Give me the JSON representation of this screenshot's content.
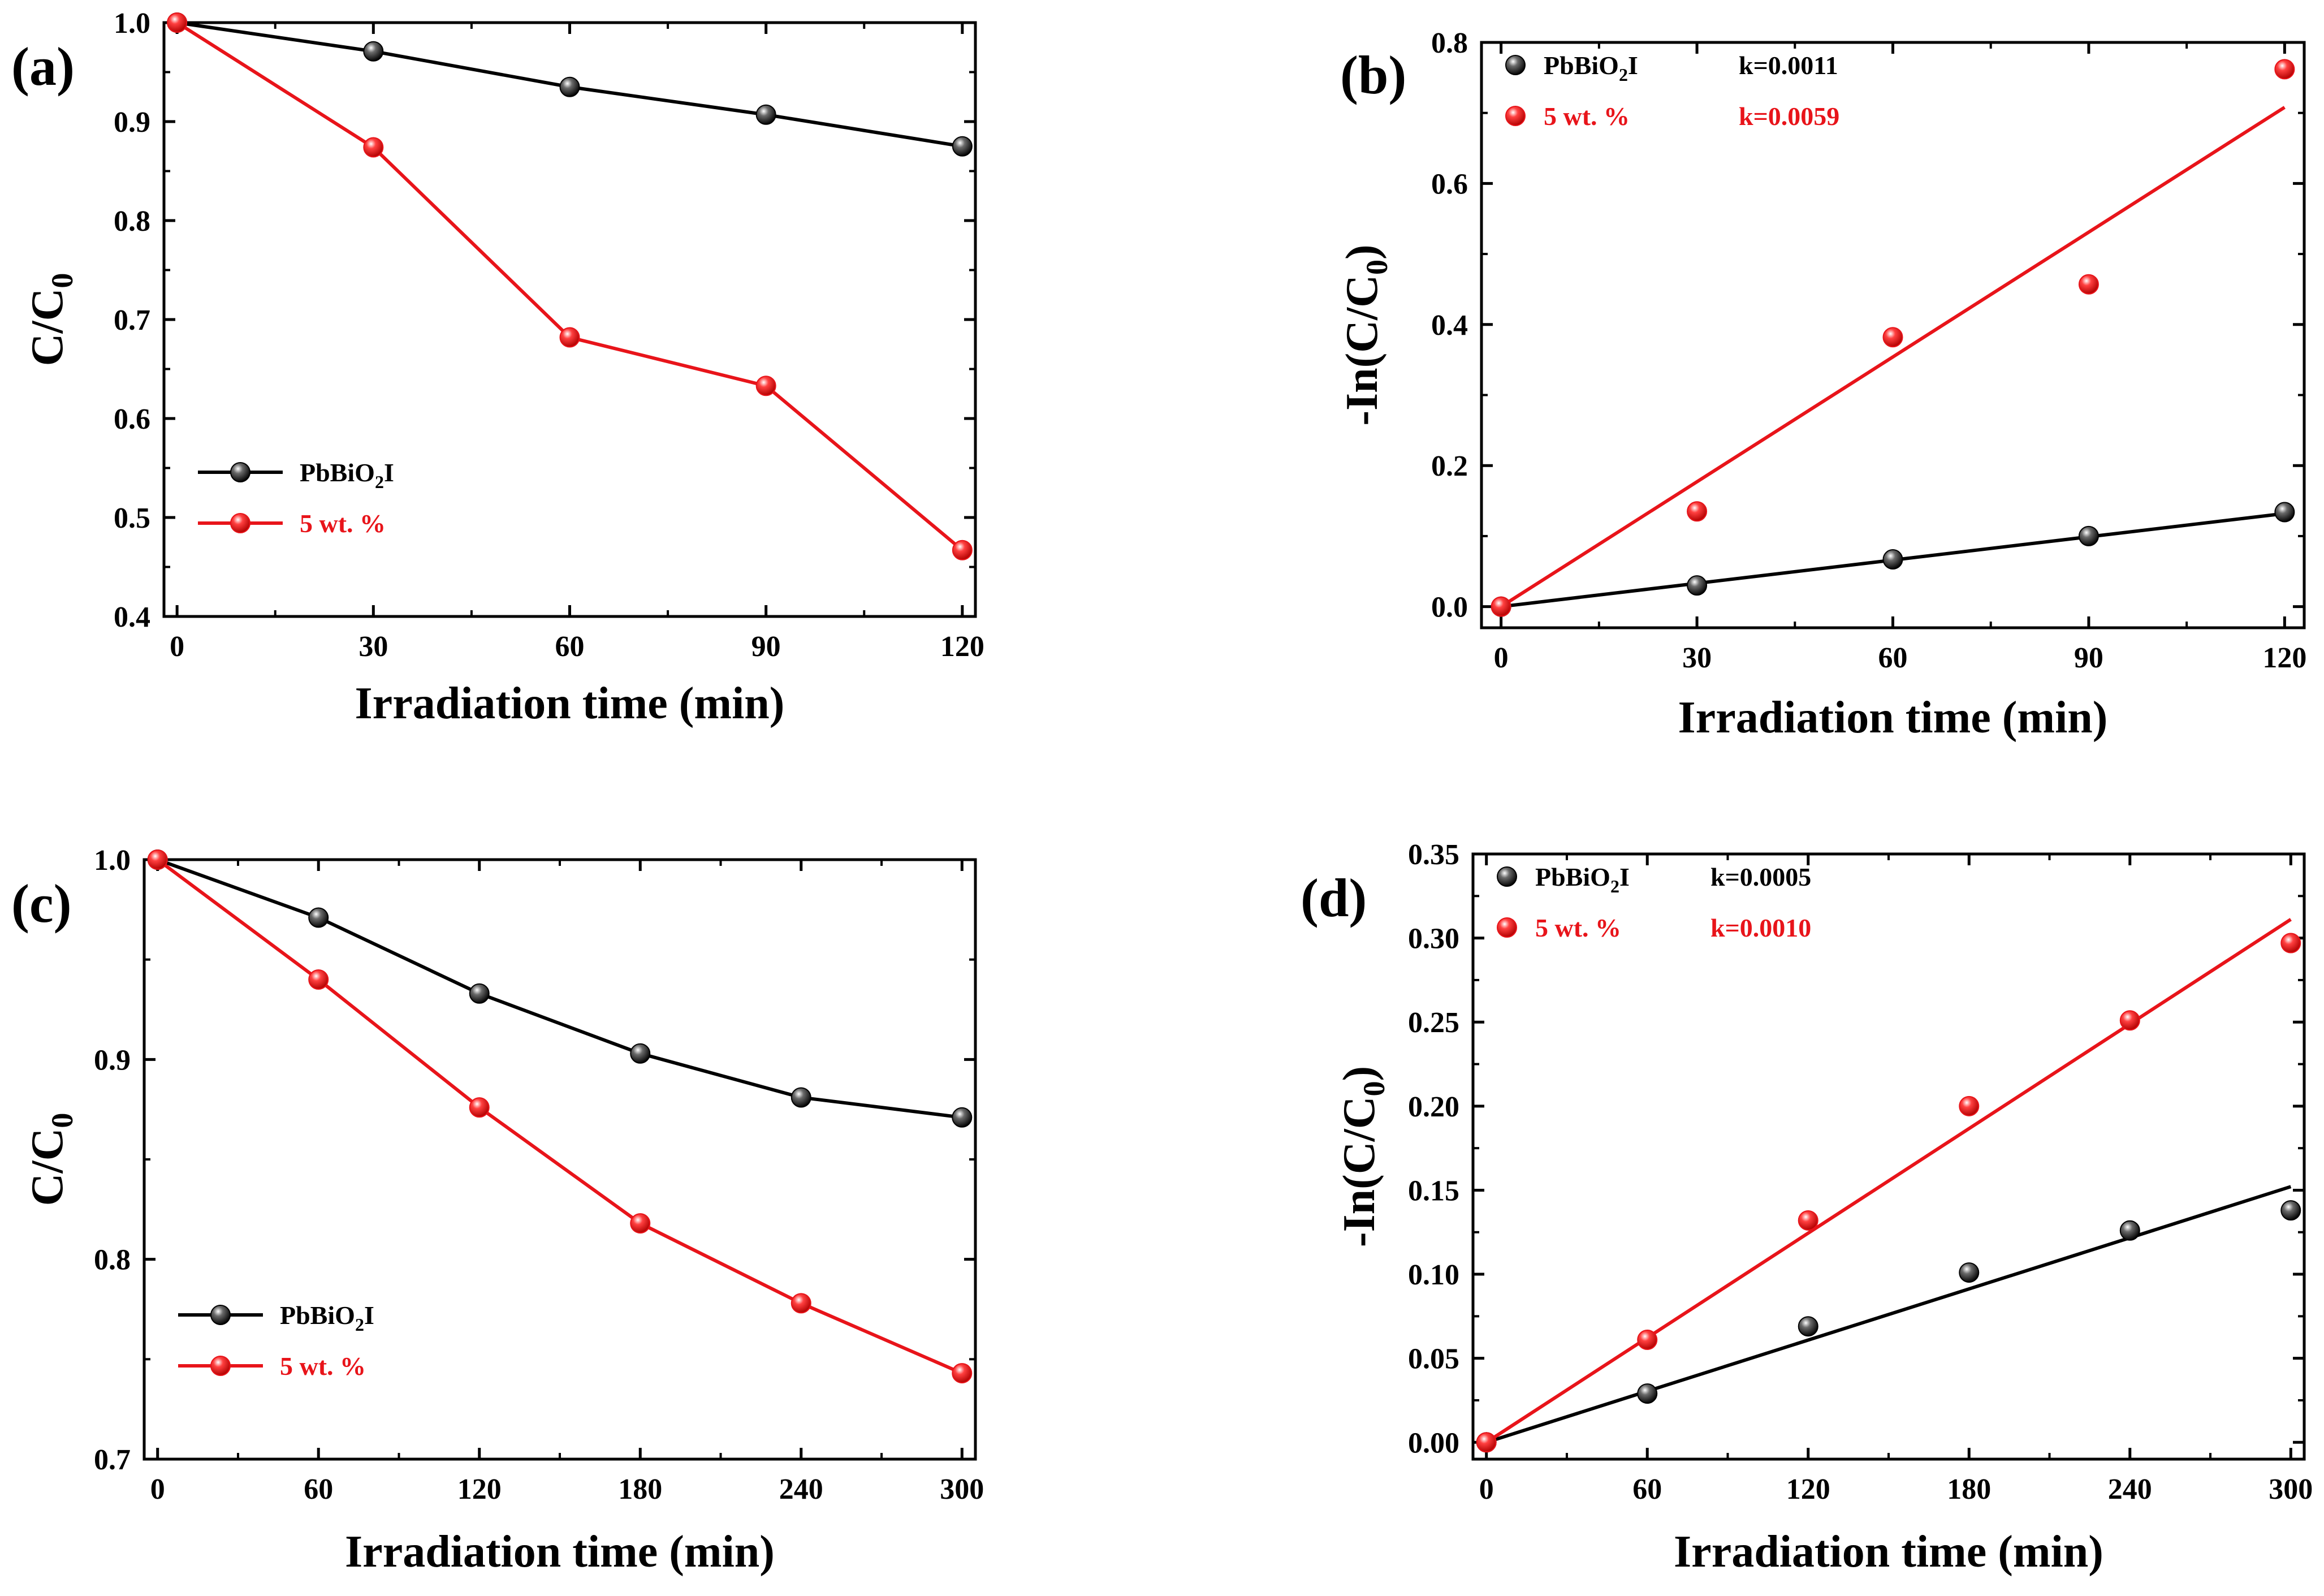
{
  "chart_data": [
    {
      "id": "a",
      "panel_label": "(a)",
      "type": "line",
      "xlabel": "Irradiation time (min)",
      "ylabel": "C/C",
      "ylabel_sub": "0",
      "xlim": [
        -2,
        122
      ],
      "ylim": [
        0.4,
        1.0
      ],
      "xticks": [
        0,
        30,
        60,
        90,
        120
      ],
      "yticks": [
        0.4,
        0.5,
        0.6,
        0.7,
        0.8,
        0.9,
        1.0
      ],
      "xtick_labels": [
        "0",
        "30",
        "60",
        "90",
        "120"
      ],
      "ytick_labels": [
        "0.4",
        "0.5",
        "0.6",
        "0.7",
        "0.8",
        "0.9",
        "1.0"
      ],
      "legend_position": "bottom-left",
      "series": [
        {
          "name": "PbBiO",
          "name_sub": "2",
          "name_tail": "I",
          "color": "#000000",
          "x": [
            0,
            30,
            60,
            90,
            120
          ],
          "values": [
            1.0,
            0.971,
            0.935,
            0.907,
            0.875
          ]
        },
        {
          "name": "5 wt. %",
          "name_sub": "",
          "name_tail": "",
          "color": "#e8141a",
          "x": [
            0,
            30,
            60,
            90,
            120
          ],
          "values": [
            1.0,
            0.874,
            0.682,
            0.633,
            0.467
          ]
        }
      ]
    },
    {
      "id": "b",
      "panel_label": "(b)",
      "type": "scatter",
      "fit": "linear",
      "xlabel": "Irradiation time (min)",
      "ylabel": "-In(C/C",
      "ylabel_sub": "0",
      "ylabel_tail": ")",
      "xlim": [
        -3,
        123
      ],
      "ylim": [
        -0.03,
        0.8
      ],
      "xticks": [
        0,
        30,
        60,
        90,
        120
      ],
      "yticks": [
        0.0,
        0.2,
        0.4,
        0.6,
        0.8
      ],
      "xtick_labels": [
        "0",
        "30",
        "60",
        "90",
        "120"
      ],
      "ytick_labels": [
        "0.0",
        "0.2",
        "0.4",
        "0.6",
        "0.8"
      ],
      "legend_position": "top-left",
      "series": [
        {
          "name": "PbBiO",
          "name_sub": "2",
          "name_tail": "I",
          "k_label": "k=0.0011",
          "color": "#000000",
          "x": [
            0,
            30,
            60,
            90,
            120
          ],
          "values": [
            0.0,
            0.03,
            0.067,
            0.1,
            0.134
          ],
          "slope": 0.0011
        },
        {
          "name": "5 wt. %",
          "name_sub": "",
          "name_tail": "",
          "k_label": "k=0.0059",
          "color": "#e8141a",
          "x": [
            0,
            30,
            60,
            90,
            120
          ],
          "values": [
            0.0,
            0.135,
            0.382,
            0.457,
            0.762
          ],
          "slope": 0.0059
        }
      ]
    },
    {
      "id": "c",
      "panel_label": "(c)",
      "type": "line",
      "xlabel": "Irradiation time (min)",
      "ylabel": "C/C",
      "ylabel_sub": "0",
      "xlim": [
        -5,
        305
      ],
      "ylim": [
        0.7,
        1.0
      ],
      "xticks": [
        0,
        60,
        120,
        180,
        240,
        300
      ],
      "yticks": [
        0.7,
        0.8,
        0.9,
        1.0
      ],
      "xtick_labels": [
        "0",
        "60",
        "120",
        "180",
        "240",
        "300"
      ],
      "ytick_labels": [
        "0.7",
        "0.8",
        "0.9",
        "1.0"
      ],
      "legend_position": "bottom-left",
      "series": [
        {
          "name": "PbBiO",
          "name_sub": "2",
          "name_tail": "I",
          "color": "#000000",
          "x": [
            0,
            60,
            120,
            180,
            240,
            300
          ],
          "values": [
            1.0,
            0.971,
            0.933,
            0.903,
            0.881,
            0.871
          ]
        },
        {
          "name": "5 wt. %",
          "name_sub": "",
          "name_tail": "",
          "color": "#e8141a",
          "x": [
            0,
            60,
            120,
            180,
            240,
            300
          ],
          "values": [
            1.0,
            0.94,
            0.876,
            0.818,
            0.778,
            0.743
          ]
        }
      ]
    },
    {
      "id": "d",
      "panel_label": "(d)",
      "type": "scatter",
      "fit": "linear",
      "xlabel": "Irradiation time (min)",
      "ylabel": "-In(C/C",
      "ylabel_sub": "0",
      "ylabel_tail": ")",
      "xlim": [
        -5,
        305
      ],
      "ylim": [
        -0.01,
        0.35
      ],
      "xticks": [
        0,
        60,
        120,
        180,
        240,
        300
      ],
      "yticks": [
        0.0,
        0.05,
        0.1,
        0.15,
        0.2,
        0.25,
        0.3,
        0.35
      ],
      "xtick_labels": [
        "0",
        "60",
        "120",
        "180",
        "240",
        "300"
      ],
      "ytick_labels": [
        "0.00",
        "0.05",
        "0.10",
        "0.15",
        "0.20",
        "0.25",
        "0.30",
        "0.35"
      ],
      "legend_position": "top-left",
      "series": [
        {
          "name": "PbBiO",
          "name_sub": "2",
          "name_tail": "I",
          "k_label": "k=0.0005",
          "color": "#000000",
          "x": [
            0,
            60,
            120,
            180,
            240,
            300
          ],
          "values": [
            0.0,
            0.029,
            0.069,
            0.101,
            0.126,
            0.138
          ],
          "slope": 0.000507
        },
        {
          "name": "5 wt. %",
          "name_sub": "",
          "name_tail": "",
          "k_label": "k=0.0010",
          "color": "#e8141a",
          "x": [
            0,
            60,
            120,
            180,
            240,
            300
          ],
          "values": [
            0.0,
            0.061,
            0.132,
            0.2,
            0.251,
            0.297
          ],
          "slope": 0.001037
        }
      ]
    }
  ]
}
